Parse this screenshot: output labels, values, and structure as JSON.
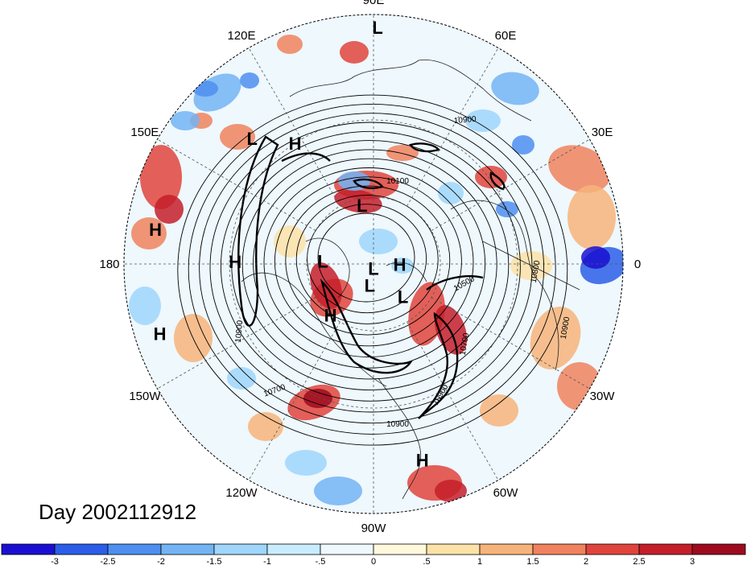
{
  "map": {
    "projection": "north-polar-stereographic",
    "field": "height anomaly (shaded) with geopotential height contours",
    "longitude_labels": [
      {
        "text": "90E",
        "lon": 90
      },
      {
        "text": "60E",
        "lon": 60
      },
      {
        "text": "30E",
        "lon": 30
      },
      {
        "text": "0",
        "lon": 0
      },
      {
        "text": "30W",
        "lon": -30
      },
      {
        "text": "60W",
        "lon": -60
      },
      {
        "text": "90W",
        "lon": -90
      },
      {
        "text": "120W",
        "lon": -120
      },
      {
        "text": "150W",
        "lon": -150
      },
      {
        "text": "180",
        "lon": 180
      },
      {
        "text": "150E",
        "lon": 150
      },
      {
        "text": "120E",
        "lon": 120
      }
    ],
    "pressure_centers": [
      {
        "type": "L",
        "lon": 89,
        "lat": 3
      },
      {
        "type": "H",
        "lon": 123,
        "lat": 30
      },
      {
        "type": "L",
        "lon": 134,
        "lat": 20
      },
      {
        "type": "H",
        "lon": 171,
        "lat": 7
      },
      {
        "type": "H",
        "lon": 179,
        "lat": 32
      },
      {
        "type": "H",
        "lon": -162,
        "lat": 6
      },
      {
        "type": "L",
        "lon": 101,
        "lat": 63
      },
      {
        "type": "L",
        "lon": 177,
        "lat": 67
      },
      {
        "type": "L",
        "lon": -90,
        "lat": 88
      },
      {
        "type": "H",
        "lon": -1,
        "lat": 78
      },
      {
        "type": "L",
        "lon": -100,
        "lat": 80
      },
      {
        "type": "L",
        "lon": -48,
        "lat": 70
      },
      {
        "type": "H",
        "lon": -130,
        "lat": 60
      },
      {
        "type": "H",
        "lon": -76,
        "lat": 12
      }
    ],
    "contour_labels": [
      "10900",
      "10100",
      "10500",
      "10800",
      "10900",
      "10700",
      "10900",
      "10700",
      "10900",
      "10900"
    ],
    "day_label": "Day 2002112912"
  },
  "colorbar": {
    "colors": [
      "#1a0fd0",
      "#2a5ee8",
      "#4e8ff0",
      "#73b4f5",
      "#9fd6fb",
      "#c8ecfd",
      "#eef8fd",
      "#fff8dc",
      "#fde2a8",
      "#f7b47a",
      "#f0825e",
      "#e0443c",
      "#c41e2a",
      "#9e0b1e"
    ],
    "tick_labels": [
      "-3",
      "-2.5",
      "-2",
      "-1.5",
      "-1",
      "-.5",
      "0",
      ".5",
      "1",
      "1.5",
      "2",
      "2.5",
      "3"
    ]
  }
}
